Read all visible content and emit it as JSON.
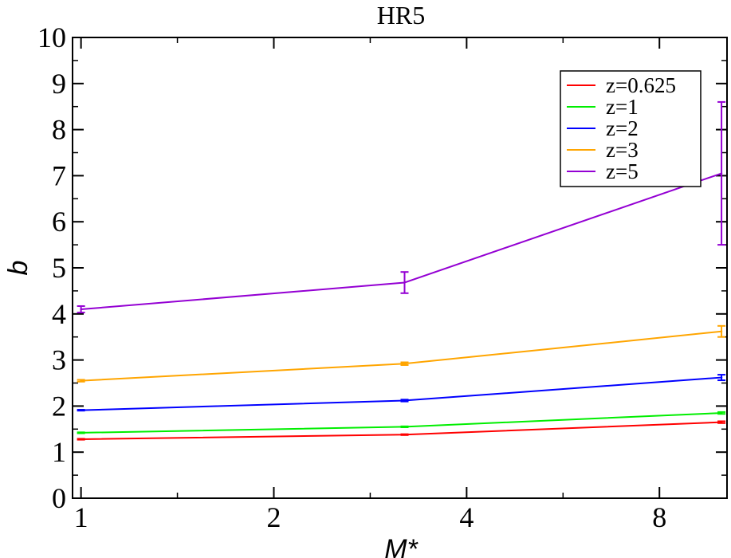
{
  "chart_data": {
    "type": "line",
    "title": "HR5",
    "xlabel": "M*",
    "ylabel": "b",
    "x_scale": "log2",
    "xlim": [
      0.97,
      10.2
    ],
    "ylim": [
      0,
      10
    ],
    "x_ticks": [
      1,
      2,
      4,
      8
    ],
    "x_tick_labels": [
      "1",
      "2",
      "4",
      "8"
    ],
    "y_ticks": [
      0,
      1,
      2,
      3,
      4,
      5,
      6,
      7,
      8,
      9,
      10
    ],
    "y_tick_labels": [
      "0",
      "1",
      "2",
      "3",
      "4",
      "5",
      "6",
      "7",
      "8",
      "9",
      "10"
    ],
    "grid": false,
    "legend_position": "top-right",
    "series": [
      {
        "name": "z=0.625",
        "color": "#ff0000",
        "x": [
          1,
          3.2,
          10
        ],
        "y": [
          1.28,
          1.38,
          1.65
        ],
        "yerr": [
          0.01,
          0.01,
          0.02
        ]
      },
      {
        "name": "z=1",
        "color": "#00ee00",
        "x": [
          1,
          3.2,
          10
        ],
        "y": [
          1.42,
          1.55,
          1.85
        ],
        "yerr": [
          0.01,
          0.01,
          0.02
        ]
      },
      {
        "name": "z=2",
        "color": "#0000ff",
        "x": [
          1,
          3.2,
          10
        ],
        "y": [
          1.91,
          2.12,
          2.62
        ],
        "yerr": [
          0.01,
          0.02,
          0.06
        ]
      },
      {
        "name": "z=3",
        "color": "#ffa500",
        "x": [
          1,
          3.2,
          10
        ],
        "y": [
          2.55,
          2.92,
          3.62
        ],
        "yerr": [
          0.02,
          0.03,
          0.12
        ]
      },
      {
        "name": "z=5",
        "color": "#9400d3",
        "x": [
          1,
          3.2,
          10
        ],
        "y": [
          4.1,
          4.68,
          7.05
        ],
        "yerr": [
          0.07,
          0.23,
          1.55
        ]
      }
    ]
  }
}
